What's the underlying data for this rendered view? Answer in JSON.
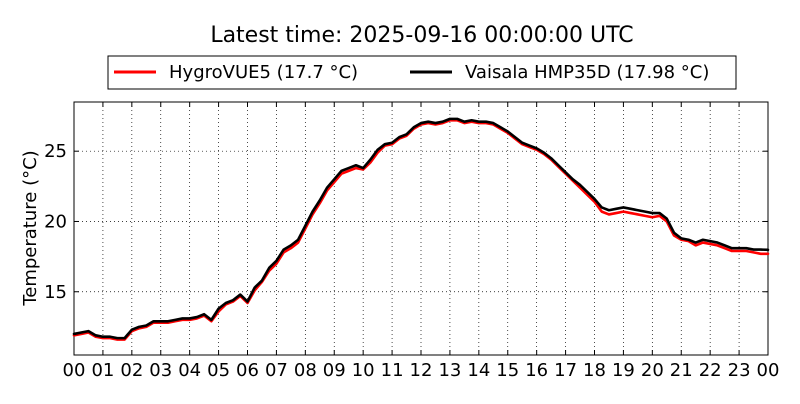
{
  "chart_data": {
    "type": "line",
    "title": "Latest time: 2025-09-16 00:00:00 UTC",
    "xlabel": "",
    "ylabel": "Temperature (°C)",
    "xlim": [
      0,
      24
    ],
    "ylim": [
      10.5,
      28.5
    ],
    "x_ticks": [
      0,
      1,
      2,
      3,
      4,
      5,
      6,
      7,
      8,
      9,
      10,
      11,
      12,
      13,
      14,
      15,
      16,
      17,
      18,
      19,
      20,
      21,
      22,
      23,
      24
    ],
    "x_tick_labels": [
      "00",
      "01",
      "02",
      "03",
      "04",
      "05",
      "06",
      "07",
      "08",
      "09",
      "10",
      "11",
      "12",
      "13",
      "14",
      "15",
      "16",
      "17",
      "18",
      "19",
      "20",
      "21",
      "22",
      "23",
      "00"
    ],
    "y_ticks": [
      15,
      20,
      25
    ],
    "y_tick_labels": [
      "15",
      "20",
      "25"
    ],
    "grid": true,
    "legend_position": "top-center, above plot",
    "series": [
      {
        "name": "HygroVUE5 (17.7 °C)",
        "color": "#ff0000",
        "x": [
          0,
          0.25,
          0.5,
          0.75,
          1,
          1.25,
          1.5,
          1.75,
          2,
          2.25,
          2.5,
          2.75,
          3,
          3.25,
          3.5,
          3.75,
          4,
          4.25,
          4.5,
          4.75,
          5,
          5.25,
          5.5,
          5.75,
          6,
          6.25,
          6.5,
          6.75,
          7,
          7.25,
          7.5,
          7.75,
          8,
          8.25,
          8.5,
          8.75,
          9,
          9.25,
          9.5,
          9.75,
          10,
          10.25,
          10.5,
          10.75,
          11,
          11.25,
          11.5,
          11.75,
          12,
          12.25,
          12.5,
          12.75,
          13,
          13.25,
          13.5,
          13.75,
          14,
          14.25,
          14.5,
          14.75,
          15,
          15.25,
          15.5,
          15.75,
          16,
          16.25,
          16.5,
          16.75,
          17,
          17.25,
          17.5,
          17.75,
          18,
          18.25,
          18.5,
          18.75,
          19,
          19.25,
          19.5,
          19.75,
          20,
          20.25,
          20.5,
          20.75,
          21,
          21.25,
          21.5,
          21.75,
          22,
          22.25,
          22.5,
          22.75,
          23,
          23.25,
          23.5,
          23.75,
          24
        ],
        "values": [
          11.9,
          12.0,
          12.1,
          11.8,
          11.7,
          11.7,
          11.6,
          11.6,
          12.2,
          12.4,
          12.5,
          12.8,
          12.8,
          12.8,
          12.9,
          13.0,
          13.0,
          13.1,
          13.3,
          12.9,
          13.6,
          14.1,
          14.3,
          14.7,
          14.2,
          15.1,
          15.7,
          16.5,
          17.0,
          17.8,
          18.1,
          18.5,
          19.5,
          20.5,
          21.3,
          22.2,
          22.8,
          23.4,
          23.6,
          23.8,
          23.7,
          24.2,
          24.9,
          25.4,
          25.5,
          25.9,
          26.1,
          26.6,
          26.9,
          27.0,
          26.9,
          27.0,
          27.2,
          27.2,
          27.0,
          27.1,
          27.0,
          27.0,
          26.9,
          26.6,
          26.3,
          25.9,
          25.5,
          25.3,
          25.1,
          24.8,
          24.4,
          23.9,
          23.4,
          22.9,
          22.4,
          21.9,
          21.4,
          20.7,
          20.5,
          20.6,
          20.7,
          20.6,
          20.5,
          20.4,
          20.3,
          20.4,
          20.0,
          19.0,
          18.7,
          18.6,
          18.3,
          18.5,
          18.4,
          18.3,
          18.1,
          17.9,
          17.9,
          17.9,
          17.8,
          17.7,
          17.7
        ]
      },
      {
        "name": "Vaisala HMP35D (17.98 °C)",
        "color": "#000000",
        "x": [
          0,
          0.25,
          0.5,
          0.75,
          1,
          1.25,
          1.5,
          1.75,
          2,
          2.25,
          2.5,
          2.75,
          3,
          3.25,
          3.5,
          3.75,
          4,
          4.25,
          4.5,
          4.75,
          5,
          5.25,
          5.5,
          5.75,
          6,
          6.25,
          6.5,
          6.75,
          7,
          7.25,
          7.5,
          7.75,
          8,
          8.25,
          8.5,
          8.75,
          9,
          9.25,
          9.5,
          9.75,
          10,
          10.25,
          10.5,
          10.75,
          11,
          11.25,
          11.5,
          11.75,
          12,
          12.25,
          12.5,
          12.75,
          13,
          13.25,
          13.5,
          13.75,
          14,
          14.25,
          14.5,
          14.75,
          15,
          15.25,
          15.5,
          15.75,
          16,
          16.25,
          16.5,
          16.75,
          17,
          17.25,
          17.5,
          17.75,
          18,
          18.25,
          18.5,
          18.75,
          19,
          19.25,
          19.5,
          19.75,
          20,
          20.25,
          20.5,
          20.75,
          21,
          21.25,
          21.5,
          21.75,
          22,
          22.25,
          22.5,
          22.75,
          23,
          23.25,
          23.5,
          23.75,
          24
        ],
        "values": [
          12.0,
          12.1,
          12.2,
          11.9,
          11.8,
          11.8,
          11.7,
          11.7,
          12.3,
          12.5,
          12.6,
          12.9,
          12.9,
          12.9,
          13.0,
          13.1,
          13.1,
          13.2,
          13.4,
          13.0,
          13.8,
          14.2,
          14.4,
          14.8,
          14.3,
          15.3,
          15.8,
          16.7,
          17.2,
          18.0,
          18.3,
          18.7,
          19.7,
          20.7,
          21.5,
          22.4,
          23.0,
          23.6,
          23.8,
          24.0,
          23.8,
          24.4,
          25.1,
          25.5,
          25.6,
          26.0,
          26.2,
          26.7,
          27.0,
          27.1,
          27.0,
          27.1,
          27.3,
          27.3,
          27.1,
          27.2,
          27.1,
          27.1,
          27.0,
          26.7,
          26.4,
          26.0,
          25.6,
          25.4,
          25.2,
          24.9,
          24.5,
          24.0,
          23.5,
          23.0,
          22.6,
          22.1,
          21.6,
          21.0,
          20.8,
          20.9,
          21.0,
          20.9,
          20.8,
          20.7,
          20.6,
          20.6,
          20.2,
          19.2,
          18.8,
          18.7,
          18.5,
          18.7,
          18.6,
          18.5,
          18.3,
          18.1,
          18.1,
          18.1,
          18.0,
          18.0,
          17.98
        ]
      }
    ]
  }
}
